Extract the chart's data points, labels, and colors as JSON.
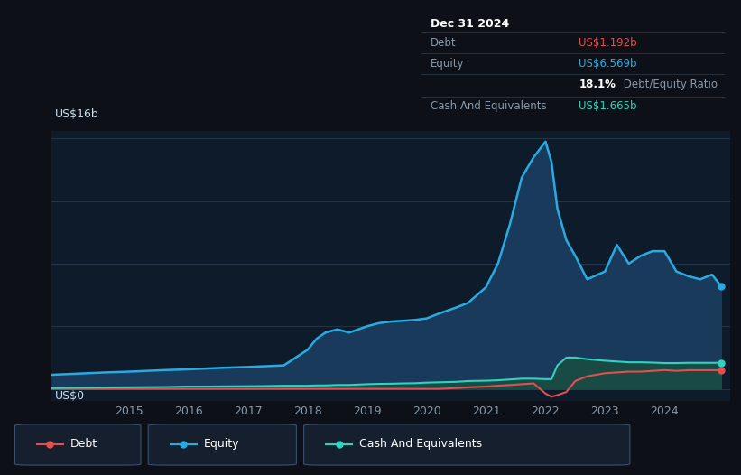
{
  "background_color": "#0d1117",
  "plot_bg_color": "#0d1b2a",
  "grid_color": "#253a52",
  "title_label": "US$16b",
  "zero_label": "US$0",
  "x_ticks": [
    2015,
    2016,
    2017,
    2018,
    2019,
    2020,
    2021,
    2022,
    2023,
    2024
  ],
  "y_max": 16,
  "tooltip_title": "Dec 31 2024",
  "tooltip_debt_label": "Debt",
  "tooltip_debt_value": "US$1.192b",
  "tooltip_equity_label": "Equity",
  "tooltip_equity_value": "US$6.569b",
  "tooltip_ratio_bold": "18.1%",
  "tooltip_ratio_text": " Debt/Equity Ratio",
  "tooltip_cash_label": "Cash And Equivalents",
  "tooltip_cash_value": "US$1.665b",
  "debt_color": "#e05050",
  "equity_color": "#29abe2",
  "cash_color": "#2dd4bf",
  "equity_fill_color": "#1a3a5c",
  "cash_fill_color": "#1a4a44",
  "tooltip_bg": "#111820",
  "tooltip_border": "#2a3a4a",
  "tooltip_label_color": "#8899aa",
  "legend_box_bg": "#151f2e",
  "legend_box_border": "#3a5070",
  "years": [
    2013.7,
    2014.0,
    2014.3,
    2014.6,
    2015.0,
    2015.3,
    2015.6,
    2016.0,
    2016.3,
    2016.6,
    2017.0,
    2017.3,
    2017.6,
    2018.0,
    2018.15,
    2018.3,
    2018.5,
    2018.7,
    2019.0,
    2019.2,
    2019.4,
    2019.6,
    2019.8,
    2020.0,
    2020.2,
    2020.5,
    2020.7,
    2021.0,
    2021.2,
    2021.4,
    2021.6,
    2021.8,
    2022.0,
    2022.1,
    2022.2,
    2022.35,
    2022.5,
    2022.7,
    2023.0,
    2023.2,
    2023.4,
    2023.6,
    2023.8,
    2024.0,
    2024.2,
    2024.4,
    2024.6,
    2024.8,
    2024.95
  ],
  "equity_values": [
    0.9,
    0.95,
    1.0,
    1.05,
    1.1,
    1.15,
    1.2,
    1.25,
    1.3,
    1.35,
    1.4,
    1.45,
    1.5,
    2.5,
    3.2,
    3.6,
    3.8,
    3.6,
    4.0,
    4.2,
    4.3,
    4.35,
    4.4,
    4.5,
    4.8,
    5.2,
    5.5,
    6.5,
    8.0,
    10.5,
    13.5,
    14.8,
    15.8,
    14.5,
    11.5,
    9.5,
    8.5,
    7.0,
    7.5,
    9.2,
    8.0,
    8.5,
    8.8,
    8.8,
    7.5,
    7.2,
    7.0,
    7.3,
    6.569
  ],
  "debt_values": [
    0.0,
    0.0,
    0.0,
    0.0,
    0.0,
    0.0,
    0.0,
    0.0,
    0.0,
    0.0,
    0.0,
    0.0,
    0.0,
    0.0,
    0.0,
    0.0,
    0.0,
    0.0,
    0.0,
    0.0,
    0.0,
    0.0,
    0.0,
    0.0,
    0.0,
    0.05,
    0.1,
    0.15,
    0.2,
    0.25,
    0.3,
    0.35,
    -0.3,
    -0.5,
    -0.4,
    -0.2,
    0.5,
    0.8,
    1.0,
    1.05,
    1.1,
    1.1,
    1.15,
    1.2,
    1.15,
    1.192,
    1.192,
    1.192,
    1.192
  ],
  "cash_values": [
    0.05,
    0.07,
    0.08,
    0.09,
    0.1,
    0.11,
    0.12,
    0.15,
    0.15,
    0.16,
    0.17,
    0.18,
    0.2,
    0.2,
    0.22,
    0.22,
    0.25,
    0.25,
    0.3,
    0.32,
    0.33,
    0.35,
    0.36,
    0.4,
    0.42,
    0.45,
    0.5,
    0.52,
    0.55,
    0.6,
    0.65,
    0.65,
    0.62,
    0.62,
    1.5,
    2.0,
    2.0,
    1.9,
    1.8,
    1.75,
    1.7,
    1.7,
    1.68,
    1.65,
    1.65,
    1.665,
    1.665,
    1.665,
    1.665
  ]
}
